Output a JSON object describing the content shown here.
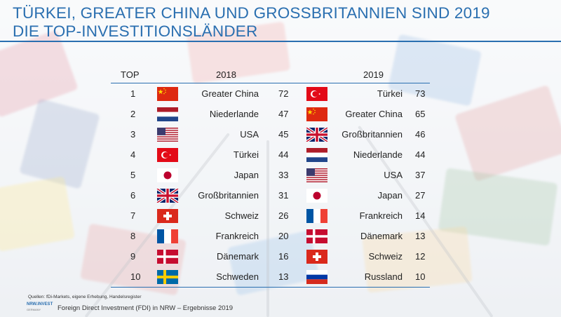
{
  "title_line1": "TÜRKEI, GREATER CHINA UND GROSSBRITANNIEN SIND 2019",
  "title_line2": "DIE TOP-INVESTITIONSLÄNDER",
  "headers": {
    "top": "TOP",
    "year_a": "2018",
    "year_b": "2019"
  },
  "rows": [
    {
      "rank": "1",
      "a": {
        "flag": "china-flag-icon",
        "name": "Greater China",
        "value": "72"
      },
      "b": {
        "flag": "turkey-flag-icon",
        "name": "Türkei",
        "value": "73"
      }
    },
    {
      "rank": "2",
      "a": {
        "flag": "netherlands-flag-icon",
        "name": "Niederlande",
        "value": "47"
      },
      "b": {
        "flag": "china-flag-icon",
        "name": "Greater China",
        "value": "65"
      }
    },
    {
      "rank": "3",
      "a": {
        "flag": "usa-flag-icon",
        "name": "USA",
        "value": "45"
      },
      "b": {
        "flag": "uk-flag-icon",
        "name": "Großbritannien",
        "value": "46"
      }
    },
    {
      "rank": "4",
      "a": {
        "flag": "turkey-flag-icon",
        "name": "Türkei",
        "value": "44"
      },
      "b": {
        "flag": "netherlands-flag-icon",
        "name": "Niederlande",
        "value": "44"
      }
    },
    {
      "rank": "5",
      "a": {
        "flag": "japan-flag-icon",
        "name": "Japan",
        "value": "33"
      },
      "b": {
        "flag": "usa-flag-icon",
        "name": "USA",
        "value": "37"
      }
    },
    {
      "rank": "6",
      "a": {
        "flag": "uk-flag-icon",
        "name": "Großbritannien",
        "value": "31"
      },
      "b": {
        "flag": "japan-flag-icon",
        "name": "Japan",
        "value": "27"
      }
    },
    {
      "rank": "7",
      "a": {
        "flag": "switzerland-flag-icon",
        "name": "Schweiz",
        "value": "26"
      },
      "b": {
        "flag": "france-flag-icon",
        "name": "Frankreich",
        "value": "14"
      }
    },
    {
      "rank": "8",
      "a": {
        "flag": "france-flag-icon",
        "name": "Frankreich",
        "value": "20"
      },
      "b": {
        "flag": "denmark-flag-icon",
        "name": "Dänemark",
        "value": "13"
      }
    },
    {
      "rank": "9",
      "a": {
        "flag": "denmark-flag-icon",
        "name": "Dänemark",
        "value": "16"
      },
      "b": {
        "flag": "switzerland-flag-icon",
        "name": "Schweiz",
        "value": "12"
      }
    },
    {
      "rank": "10",
      "a": {
        "flag": "sweden-flag-icon",
        "name": "Schweden",
        "value": "13"
      },
      "b": {
        "flag": "russia-flag-icon",
        "name": "Russland",
        "value": "10"
      }
    }
  ],
  "source": "Quellen: fDi-Markets, eigene Erhebung, Handelsregister",
  "footer": "Foreign Direct Investment (FDI) in NRW – Ergebnisse 2019",
  "logo": {
    "text": "NRW.INVEST",
    "sub": "GERMANY"
  },
  "colors": {
    "accent": "#2a6fb0",
    "text": "#222222"
  }
}
